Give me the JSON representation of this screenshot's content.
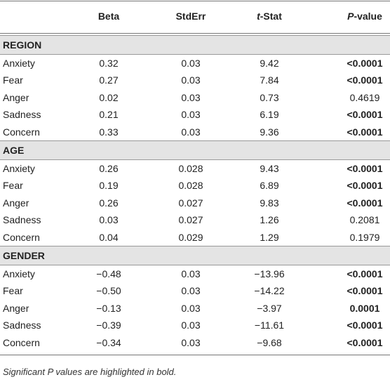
{
  "table": {
    "columns": [
      {
        "label": "Beta"
      },
      {
        "label": "StdErr"
      },
      {
        "italic": "t",
        "label": "-Stat"
      },
      {
        "italic": "P",
        "label": "-value"
      }
    ],
    "sections": [
      {
        "name": "REGION",
        "rows": [
          {
            "cells": [
              "Anxiety",
              "0.32",
              "0.03",
              "9.42",
              "<0.0001"
            ],
            "bold": true
          },
          {
            "cells": [
              "Fear",
              "0.27",
              "0.03",
              "7.84",
              "<0.0001"
            ],
            "bold": true
          },
          {
            "cells": [
              "Anger",
              "0.02",
              "0.03",
              "0.73",
              "0.4619"
            ],
            "bold": false
          },
          {
            "cells": [
              "Sadness",
              "0.21",
              "0.03",
              "6.19",
              "<0.0001"
            ],
            "bold": true
          },
          {
            "cells": [
              "Concern",
              "0.33",
              "0.03",
              "9.36",
              "<0.0001"
            ],
            "bold": true
          }
        ]
      },
      {
        "name": "AGE",
        "rows": [
          {
            "cells": [
              "Anxiety",
              "0.26",
              "0.028",
              "9.43",
              "<0.0001"
            ],
            "bold": true
          },
          {
            "cells": [
              "Fear",
              "0.19",
              "0.028",
              "6.89",
              "<0.0001"
            ],
            "bold": true
          },
          {
            "cells": [
              "Anger",
              "0.26",
              "0.027",
              "9.83",
              "<0.0001"
            ],
            "bold": true
          },
          {
            "cells": [
              "Sadness",
              "0.03",
              "0.027",
              "1.26",
              "0.2081"
            ],
            "bold": false
          },
          {
            "cells": [
              "Concern",
              "0.04",
              "0.029",
              "1.29",
              "0.1979"
            ],
            "bold": false
          }
        ]
      },
      {
        "name": "GENDER",
        "rows": [
          {
            "cells": [
              "Anxiety",
              "−0.48",
              "0.03",
              "−13.96",
              "<0.0001"
            ],
            "bold": true
          },
          {
            "cells": [
              "Fear",
              "−0.50",
              "0.03",
              "−14.22",
              "<0.0001"
            ],
            "bold": true
          },
          {
            "cells": [
              "Anger",
              "−0.13",
              "0.03",
              "−3.97",
              "0.0001"
            ],
            "bold": true
          },
          {
            "cells": [
              "Sadness",
              "−0.39",
              "0.03",
              "−11.61",
              "<0.0001"
            ],
            "bold": true
          },
          {
            "cells": [
              "Concern",
              "−0.34",
              "0.03",
              "−9.68",
              "<0.0001"
            ],
            "bold": true
          }
        ]
      }
    ],
    "footnote": "Significant P values are highlighted in bold."
  }
}
